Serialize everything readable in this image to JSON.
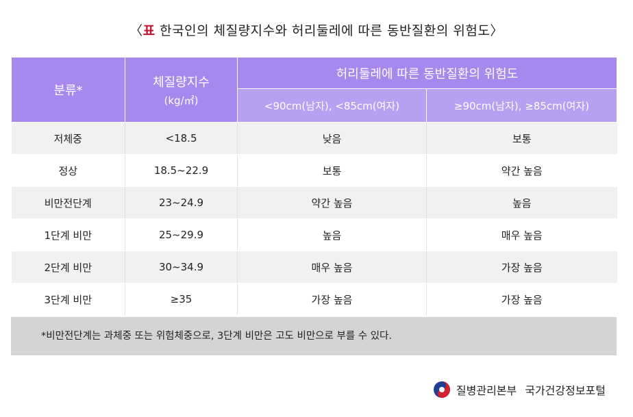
{
  "title": {
    "open_bracket": "〈",
    "pyo": "표",
    "text": " 한국인의 체질량지수와 허리둘레에 따른 동반질환의 위험도",
    "close_bracket": "〉"
  },
  "table": {
    "headers": {
      "category": "분류*",
      "bmi": "체질량지수",
      "bmi_unit": "(kg/㎡)",
      "waist_group": "허리둘레에 따른 동반질환의 위험도",
      "waist_low": "<90cm(남자), <85cm(여자)",
      "waist_high": "≥90cm(남자), ≥85cm(여자)"
    },
    "rows": [
      {
        "category": "저체중",
        "bmi": "<18.5",
        "low": "낮음",
        "high": "보통"
      },
      {
        "category": "정상",
        "bmi": "18.5~22.9",
        "low": "보통",
        "high": "약간 높음"
      },
      {
        "category": "비만전단계",
        "bmi": "23~24.9",
        "low": "약간 높음",
        "high": "높음"
      },
      {
        "category": "1단계 비만",
        "bmi": "25~29.9",
        "low": "높음",
        "high": "매우 높음"
      },
      {
        "category": "2단계 비만",
        "bmi": "30~34.9",
        "low": "매우 높음",
        "high": "가장 높음"
      },
      {
        "category": "3단계 비만",
        "bmi": "≥35",
        "low": "가장 높음",
        "high": "가장 높음"
      }
    ]
  },
  "note": "*비만전단계는 과체중 또는 위험체중으로, 3단계 비만은 고도 비만으로 부를 수 있다.",
  "footer": {
    "org": "질병관리본부",
    "portal": "국가건강정보포털"
  },
  "colors": {
    "header_purple": "#a688ee",
    "subheader_purple": "#b7a0f2",
    "accent_red": "#c8102e",
    "logo_blue": "#1c3f94"
  }
}
